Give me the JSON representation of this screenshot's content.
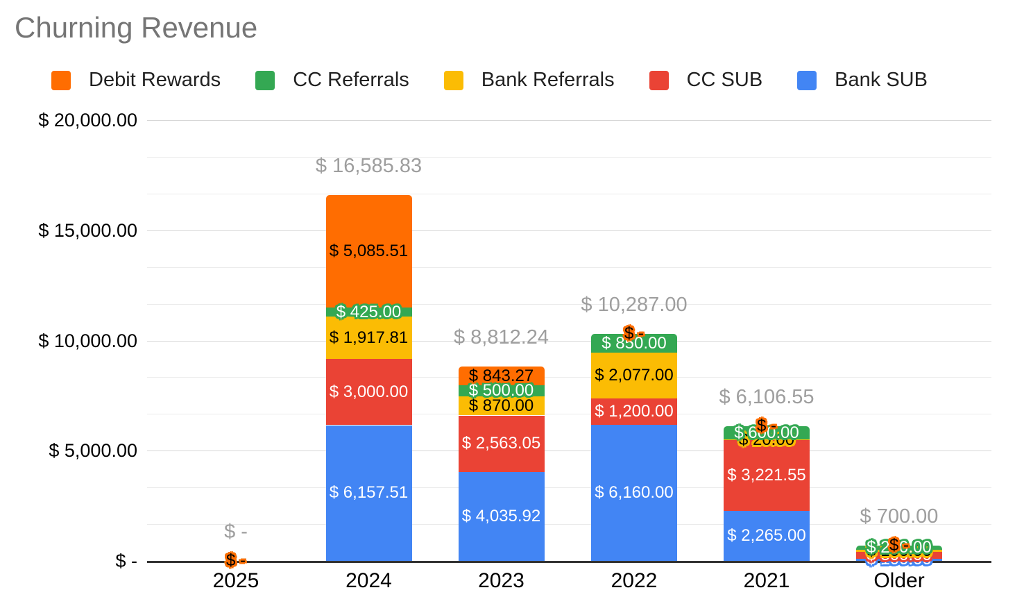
{
  "title": "Churning Revenue",
  "legend": [
    {
      "label": "Debit Rewards",
      "color": "#FF6D01"
    },
    {
      "label": "CC Referrals",
      "color": "#34A853"
    },
    {
      "label": "Bank Referrals",
      "color": "#FBBC04"
    },
    {
      "label": "CC SUB",
      "color": "#EA4335"
    },
    {
      "label": "Bank SUB",
      "color": "#4285F4"
    }
  ],
  "colors": {
    "title_text": "#757575",
    "axis_line": "#333333",
    "major_grid": "#d6d6d6",
    "minor_grid": "#ebebeb",
    "axis_text": "#000000",
    "total_label": "#9e9e9e"
  },
  "chart_data": {
    "type": "bar",
    "stacked": true,
    "title": "Churning Revenue",
    "legend_position": "top",
    "grid": true,
    "categories": [
      "2025",
      "2024",
      "2023",
      "2022",
      "2021",
      "Older"
    ],
    "series": [
      {
        "name": "Bank SUB",
        "color": "#4285F4",
        "label_text_color": "#ffffff",
        "values": [
          0,
          6157.51,
          4035.92,
          6160.0,
          2265.0,
          100.0
        ],
        "labels": [
          "$ -",
          "$ 6,157.51",
          "$ 4,035.92",
          "$ 6,160.00",
          "$ 2,265.00",
          "$ 100.00"
        ]
      },
      {
        "name": "CC SUB",
        "color": "#EA4335",
        "label_text_color": "#ffffff",
        "values": [
          0,
          3000.0,
          2563.05,
          1200.0,
          3221.55,
          300.0
        ],
        "labels": [
          "$ -",
          "$ 3,000.00",
          "$ 2,563.05",
          "$ 1,200.00",
          "$ 3,221.55",
          "$ 300.00"
        ]
      },
      {
        "name": "Bank Referrals",
        "color": "#FBBC04",
        "label_text_color": "#000000",
        "values": [
          0,
          1917.81,
          870.0,
          2077.0,
          20.0,
          100.0
        ],
        "labels": [
          "$ -",
          "$ 1,917.81",
          "$ 870.00",
          "$ 2,077.00",
          "$ 20.00",
          "$ 100.00"
        ]
      },
      {
        "name": "CC Referrals",
        "color": "#34A853",
        "label_text_color": "#ffffff",
        "values": [
          0,
          425.0,
          500.0,
          850.0,
          600.0,
          200.0
        ],
        "labels": [
          "$ -",
          "$ 425.00",
          "$ 500.00",
          "$ 850.00",
          "$ 600.00",
          "$ 200.00"
        ]
      },
      {
        "name": "Debit Rewards",
        "color": "#FF6D01",
        "label_text_color": "#000000",
        "values": [
          0,
          5085.51,
          843.27,
          0,
          0,
          0
        ],
        "labels": [
          "$ -",
          "$ 5,085.51",
          "$ 843.27",
          "$ -",
          "$ -",
          "$ -"
        ]
      }
    ],
    "totals": {
      "values": [
        0,
        16585.83,
        8812.24,
        10287.0,
        6106.55,
        700.0
      ],
      "labels": [
        "$ -",
        "$ 16,585.83",
        "$ 8,812.24",
        "$ 10,287.00",
        "$ 6,106.55",
        "$ 700.00"
      ]
    },
    "y_axis": {
      "min": 0,
      "max": 20000,
      "major_step": 5000,
      "minor_divisions_per_major": 3,
      "tick_labels": [
        {
          "value": 0,
          "label": "$ -"
        },
        {
          "value": 5000,
          "label": "$ 5,000.00"
        },
        {
          "value": 10000,
          "label": "$ 10,000.00"
        },
        {
          "value": 15000,
          "label": "$ 15,000.00"
        },
        {
          "value": 20000,
          "label": "$ 20,000.00"
        }
      ]
    }
  }
}
